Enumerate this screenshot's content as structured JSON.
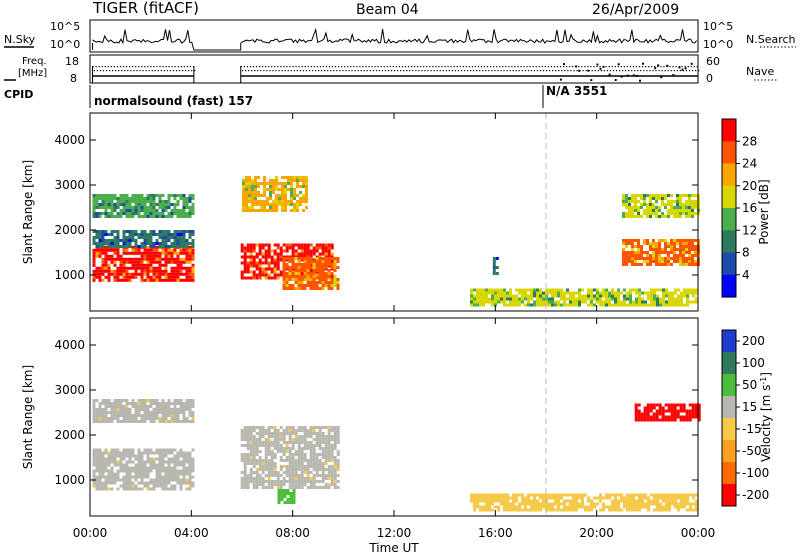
{
  "header": {
    "radar": "TIGER (fitACF)",
    "beam": "Beam 04",
    "date": "26/Apr/2009"
  },
  "top_panel": {
    "nsky_label": "N.Sky",
    "nsearch_label": "N.Search",
    "ticks_left": [
      "10^5",
      "10^0"
    ],
    "ticks_right": [
      "10^5",
      "10^0"
    ],
    "freq_label_line1": "Freq.",
    "freq_label_line2": "[MHz]",
    "freq_ticks": [
      "18",
      "8"
    ],
    "nave_label": "Nave",
    "nave_ticks": [
      "60",
      "0"
    ],
    "cpid_label": "CPID",
    "cpid_segments": [
      {
        "label": "normalsound (fast) 157",
        "start_hour": 0
      },
      {
        "label": "N/A 3551",
        "start_hour": 18
      }
    ]
  },
  "chart_data": [
    {
      "type": "heatmap",
      "title": "",
      "xlabel": "Time UT",
      "ylabel": "Slant Range [km]",
      "x_range_hours": [
        0,
        24
      ],
      "x_ticks": [
        "00:00",
        "04:00",
        "08:00",
        "12:00",
        "16:00",
        "20:00",
        "00:00"
      ],
      "y_range": [
        200,
        4600
      ],
      "y_ticks": [
        1000,
        2000,
        3000,
        4000
      ],
      "colorbar": {
        "label": "Power [dB]",
        "ticks": [
          4,
          8,
          12,
          16,
          20,
          24,
          28
        ],
        "range": [
          0,
          32
        ],
        "colors": [
          "#0000ff",
          "#1f4ba8",
          "#2d7a5f",
          "#4cae4c",
          "#d8d800",
          "#ffa500",
          "#ff5500",
          "#ff0000"
        ]
      },
      "data_gap_hours": [
        4.1,
        5.95
      ],
      "echo_regions": [
        {
          "hours": [
            0.1,
            4.1
          ],
          "range_km": [
            900,
            1650
          ],
          "power_db": 28
        },
        {
          "hours": [
            0.1,
            4.1
          ],
          "range_km": [
            1650,
            2000
          ],
          "power_db": 10
        },
        {
          "hours": [
            0.1,
            4.1
          ],
          "range_km": [
            2300,
            2800
          ],
          "power_db": 12
        },
        {
          "hours": [
            5.95,
            9.6
          ],
          "range_km": [
            900,
            1700
          ],
          "power_db": 28
        },
        {
          "hours": [
            7.6,
            9.8
          ],
          "range_km": [
            700,
            1400
          ],
          "power_db": 26
        },
        {
          "hours": [
            6.0,
            8.6
          ],
          "range_km": [
            2400,
            3200
          ],
          "power_db": 20
        },
        {
          "hours": [
            15.9,
            16.1
          ],
          "range_km": [
            1000,
            1400
          ],
          "power_db": 8
        },
        {
          "hours": [
            15.0,
            24.0
          ],
          "range_km": [
            300,
            700
          ],
          "power_db": 18
        },
        {
          "hours": [
            21.0,
            24.0
          ],
          "range_km": [
            1200,
            1800
          ],
          "power_db": 26
        },
        {
          "hours": [
            21.0,
            24.0
          ],
          "range_km": [
            2300,
            2800
          ],
          "power_db": 16
        }
      ]
    },
    {
      "type": "heatmap",
      "title": "",
      "xlabel": "Time UT",
      "ylabel": "Slant Range [km]",
      "x_range_hours": [
        0,
        24
      ],
      "x_ticks": [
        "00:00",
        "04:00",
        "08:00",
        "12:00",
        "16:00",
        "20:00",
        "00:00"
      ],
      "y_range": [
        200,
        4600
      ],
      "y_ticks": [
        1000,
        2000,
        3000,
        4000
      ],
      "colorbar": {
        "label_main": "Velocity [m s",
        "label_sup": "-1",
        "label_end": "]",
        "ticks": [
          "200",
          "100",
          "50",
          "15",
          "-15",
          "-50",
          "-100",
          "-200"
        ],
        "colors": [
          "#1e3cd2",
          "#2e7a5a",
          "#4cbe3c",
          "#b8b8b0",
          "#f6c94a",
          "#ffa020",
          "#ff6a00",
          "#ff0000"
        ]
      },
      "data_gap_hours": [
        4.1,
        5.95
      ],
      "echo_regions": [
        {
          "hours": [
            0.1,
            4.1
          ],
          "range_km": [
            800,
            1700
          ],
          "velocity": 0
        },
        {
          "hours": [
            0.1,
            4.1
          ],
          "range_km": [
            2300,
            2800
          ],
          "velocity": 0
        },
        {
          "hours": [
            5.95,
            9.8
          ],
          "range_km": [
            800,
            2200
          ],
          "velocity": 0
        },
        {
          "hours": [
            7.4,
            8.0
          ],
          "range_km": [
            500,
            800
          ],
          "velocity": 60
        },
        {
          "hours": [
            15.0,
            24.0
          ],
          "range_km": [
            300,
            700
          ],
          "velocity": -30
        },
        {
          "hours": [
            21.5,
            24.0
          ],
          "range_km": [
            2300,
            2700
          ],
          "velocity": -200
        }
      ]
    }
  ]
}
